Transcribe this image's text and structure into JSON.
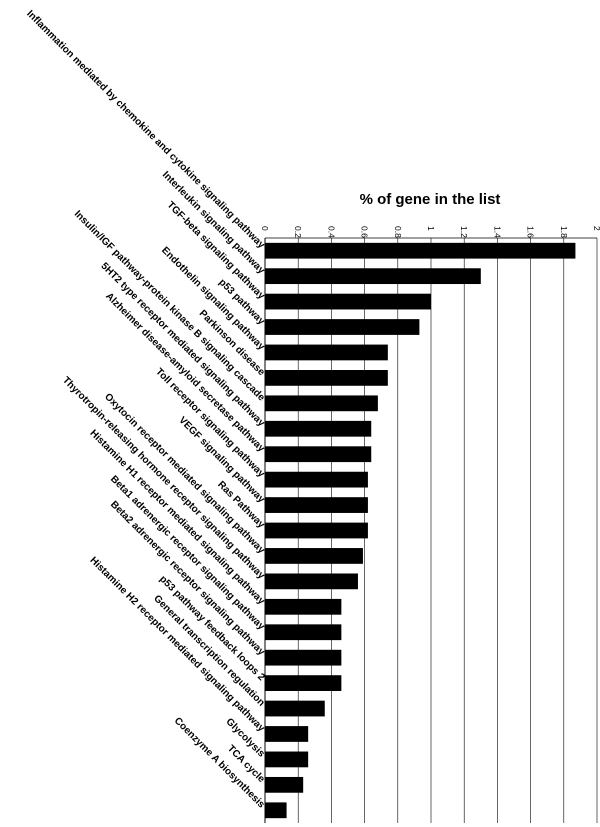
{
  "chart_data": {
    "type": "bar",
    "orientation": "horizontal",
    "title": "% of gene in the list",
    "xlabel": "",
    "ylabel": "",
    "xlim": [
      0,
      2
    ],
    "ticks": [
      "0",
      "0.2",
      "0.4",
      "0.6",
      "0.8",
      "1",
      "1.2",
      "1.4",
      "1.6",
      "1.8",
      "2"
    ],
    "grid": true,
    "bar_color": "#000000",
    "categories": [
      "Inflammation mediated by chemokine and cytokine signaling pathway",
      "Interleukin signaling pathway",
      "TGF-beta signaling pathway",
      "p53 pathway",
      "Endothelin signaling pathway",
      "Parkinson disease",
      "Insulin/IGF pathway-protein  kinase  B signaling cascade",
      "5HT2 type receptor mediated signaling pathway",
      "Alzheimer disease-amyloid  secretase pathway",
      "Toll receptor signaling pathway",
      "VEGF signaling pathway",
      "Ras Pathway",
      "Oxytocin receptor mediated signaling pathway",
      "Thyrotropin-releasing  hormone receptor signaling pathway",
      "Histamine H1 receptor mediated signaling pathway",
      "Beta1 adrenergic receptor signaling pathway",
      "Beta2 adrenergic receptor signaling pathway",
      "p53 pathway feedback loops 2",
      "General transcription  regulation",
      "Histamine H2 receptor mediated signaling pathway",
      "Glycolysis",
      "TCA cycle",
      "Coenzyme A biosynthesis"
    ],
    "values": [
      1.87,
      1.3,
      1.0,
      0.93,
      0.74,
      0.74,
      0.68,
      0.64,
      0.64,
      0.62,
      0.62,
      0.62,
      0.59,
      0.56,
      0.46,
      0.46,
      0.46,
      0.46,
      0.36,
      0.26,
      0.26,
      0.23,
      0.13
    ]
  }
}
